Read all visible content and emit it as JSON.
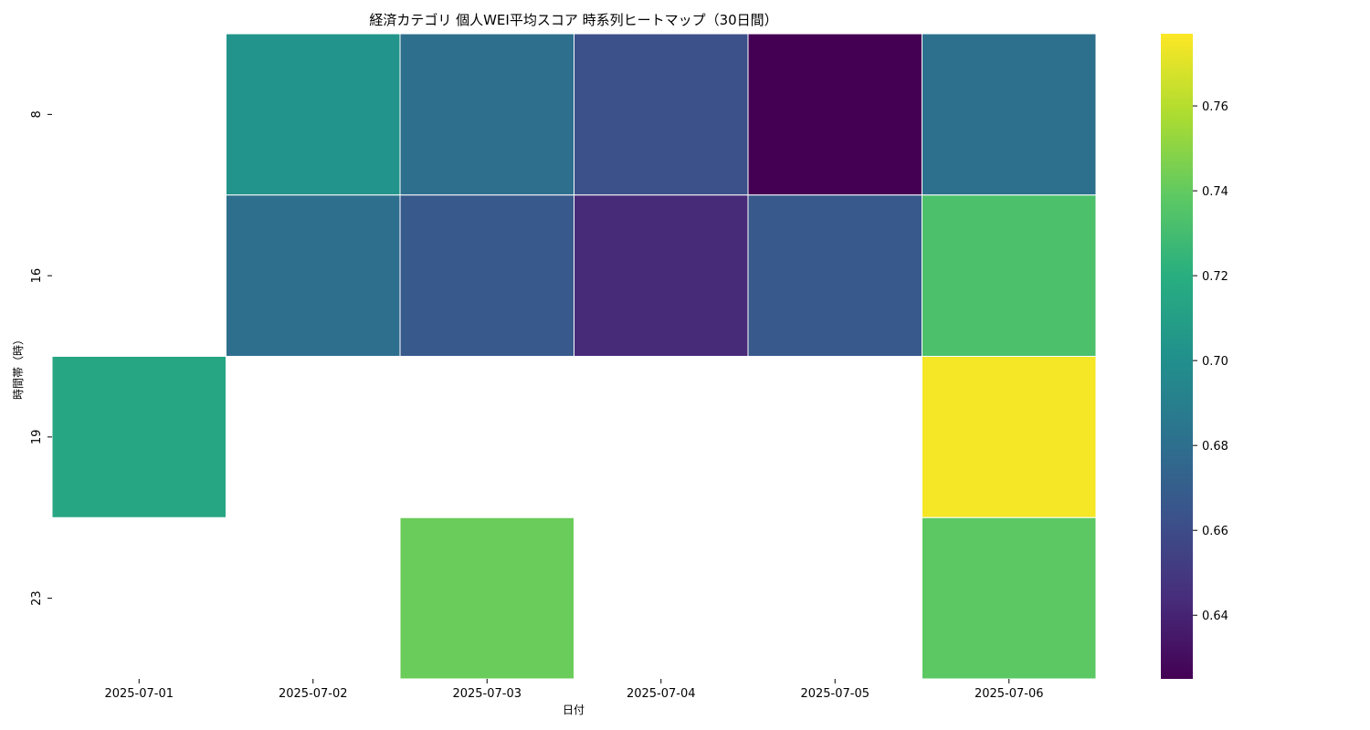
{
  "chart_data": {
    "type": "heatmap",
    "title": "経済カテゴリ 個人WEI平均スコア 時系列ヒートマップ（30日間）",
    "xlabel": "日付",
    "ylabel": "時間帯（時）",
    "x": [
      "2025-07-01",
      "2025-07-02",
      "2025-07-03",
      "2025-07-04",
      "2025-07-05",
      "2025-07-06"
    ],
    "y": [
      "8",
      "16",
      "19",
      "23"
    ],
    "values": [
      [
        null,
        0.703,
        0.68,
        0.662,
        0.625,
        0.681
      ],
      [
        null,
        0.68,
        0.667,
        0.643,
        0.667,
        0.733
      ],
      [
        0.715,
        null,
        null,
        null,
        null,
        0.775
      ],
      [
        null,
        null,
        0.742,
        null,
        null,
        0.738
      ]
    ],
    "colormap": "viridis",
    "vmin": 0.625,
    "vmax": 0.777,
    "colorbar_ticks": [
      "0.64",
      "0.66",
      "0.68",
      "0.70",
      "0.72",
      "0.74",
      "0.76"
    ],
    "cell_border_color": "#ffffff"
  }
}
